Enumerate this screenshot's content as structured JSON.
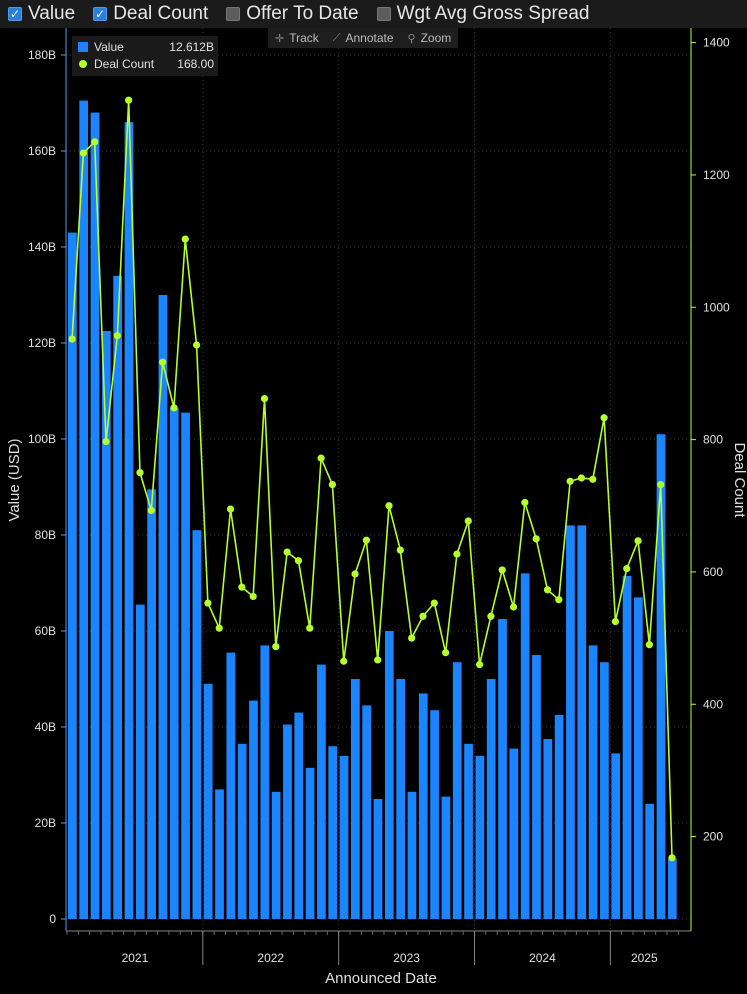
{
  "toggles": [
    {
      "label": "Value",
      "checked": true
    },
    {
      "label": "Deal Count",
      "checked": true
    },
    {
      "label": "Offer To Date",
      "checked": false
    },
    {
      "label": "Wgt Avg Gross Spread",
      "checked": false
    }
  ],
  "tools": [
    {
      "label": "Track",
      "icon": "crosshair-icon"
    },
    {
      "label": "Annotate",
      "icon": "pencil-icon"
    },
    {
      "label": "Zoom",
      "icon": "magnifier-icon"
    }
  ],
  "legend": {
    "value_name": "Value",
    "value_reading": "12.612B",
    "count_name": "Deal Count",
    "count_reading": "168.00"
  },
  "colors": {
    "bar": "#1b85ff",
    "line": "#b5ff2d",
    "background": "#000000",
    "grid": "#3a3a3a"
  },
  "chart_data": {
    "type": "bar+line",
    "xlabel": "Announced Date",
    "ylabel_left": "Value (USD)",
    "ylabel_right": "Deal Count",
    "ylim_left": [
      0,
      185
    ],
    "ylim_right": [
      80,
      1410
    ],
    "yticks_left": [
      "0",
      "20B",
      "40B",
      "60B",
      "80B",
      "100B",
      "120B",
      "140B",
      "160B",
      "180B"
    ],
    "yticks_right": [
      "200",
      "400",
      "600",
      "800",
      "1000",
      "1200",
      "1400"
    ],
    "year_labels": [
      "2021",
      "2022",
      "2023",
      "2024",
      "2025"
    ],
    "year_start_index": [
      0,
      12,
      24,
      36,
      48
    ],
    "grid": true,
    "legend_position": "top-left",
    "series": [
      {
        "name": "Value",
        "kind": "bar",
        "unit": "B USD",
        "values": [
          143,
          170.5,
          168,
          122.5,
          134,
          166,
          65.5,
          89.5,
          130,
          106.5,
          105.5,
          81,
          49,
          27,
          55.5,
          36.5,
          45.5,
          57,
          26.5,
          40.5,
          43,
          31.5,
          53,
          36,
          34,
          50,
          44.5,
          25,
          60,
          50,
          26.5,
          47,
          43.5,
          25.5,
          53.5,
          36.5,
          34,
          50,
          62.5,
          35.5,
          72,
          55,
          37.5,
          42.5,
          82,
          82,
          57,
          53.5,
          34.5,
          71.5,
          67,
          24,
          101,
          12.612
        ]
      },
      {
        "name": "Deal Count",
        "kind": "line",
        "values": [
          952,
          1233,
          1250,
          797,
          957,
          1313,
          750,
          693,
          917,
          848,
          1103,
          943,
          553,
          515,
          695,
          577,
          563,
          862,
          487,
          630,
          617,
          515,
          772,
          732,
          465,
          597,
          648,
          467,
          700,
          633,
          500,
          533,
          553,
          478,
          627,
          677,
          460,
          533,
          603,
          547,
          705,
          650,
          573,
          558,
          737,
          742,
          740,
          833,
          525,
          605,
          647,
          490,
          732,
          168
        ]
      }
    ]
  }
}
